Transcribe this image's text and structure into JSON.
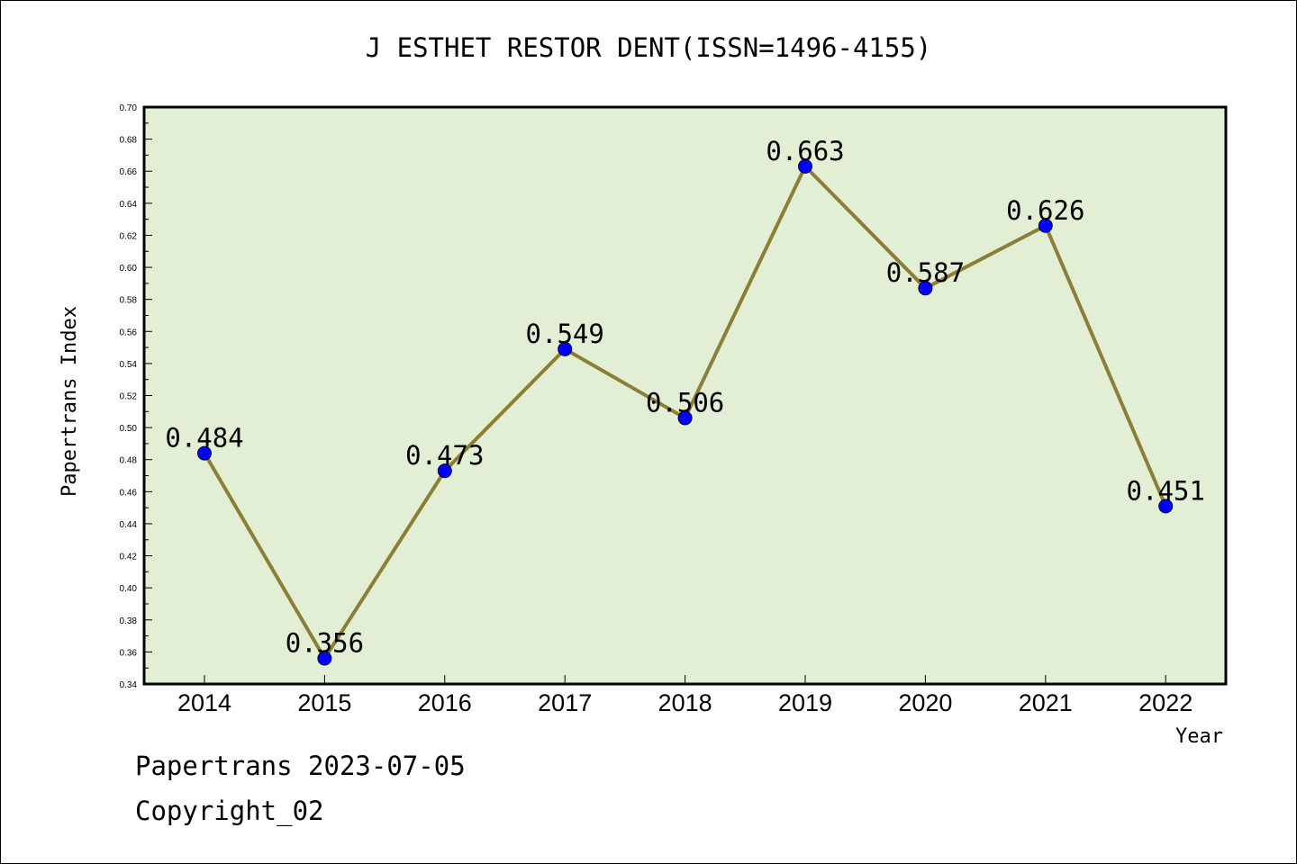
{
  "chart_data": {
    "type": "line",
    "title": "J ESTHET RESTOR DENT(ISSN=1496-4155)",
    "xlabel": "Year",
    "ylabel": "Papertrans Index",
    "categories": [
      "2014",
      "2015",
      "2016",
      "2017",
      "2018",
      "2019",
      "2020",
      "2021",
      "2022"
    ],
    "series": [
      {
        "values": [
          0.484,
          0.356,
          0.473,
          0.549,
          0.506,
          0.663,
          0.587,
          0.626,
          0.451
        ],
        "labels": [
          "0.484",
          "0.356",
          "0.473",
          "0.549",
          "0.506",
          "0.663",
          "0.587",
          "0.626",
          "0.451"
        ]
      }
    ],
    "ylim": [
      0.34,
      0.7
    ],
    "yticks": [
      "0.34",
      "0.36",
      "0.38",
      "0.40",
      "0.42",
      "0.44",
      "0.46",
      "0.48",
      "0.50",
      "0.52",
      "0.54",
      "0.56",
      "0.58",
      "0.60",
      "0.62",
      "0.64",
      "0.66",
      "0.68",
      "0.70"
    ],
    "grid": false,
    "colors": {
      "plot_background": "#e2efd5",
      "line": "#8b7e35",
      "marker": "#0000ff"
    }
  },
  "footer": {
    "date": "Papertrans 2023-07-05",
    "copyright": "Copyright_02"
  }
}
